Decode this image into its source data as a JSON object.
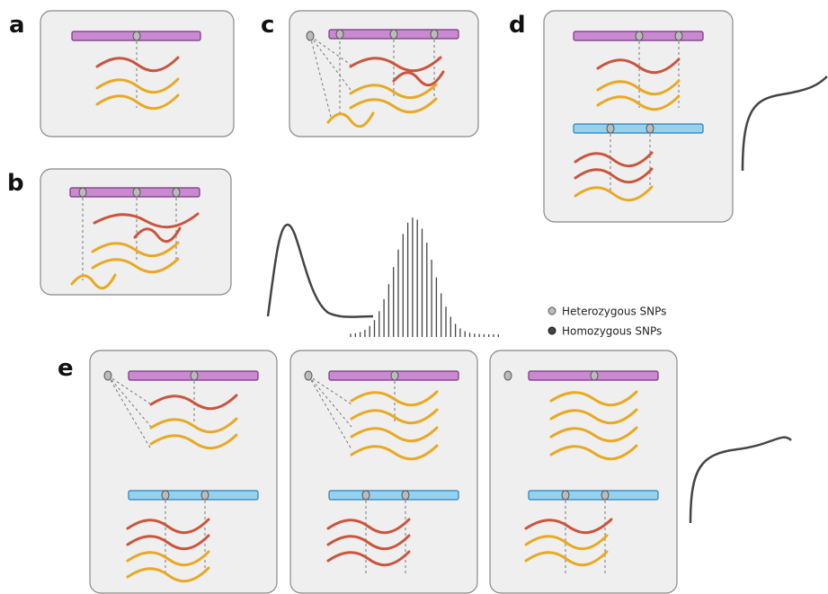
{
  "panels": [
    {
      "label": "a"
    },
    {
      "label": "b"
    },
    {
      "label": "c"
    },
    {
      "label": "d"
    },
    {
      "label": "e"
    }
  ],
  "legend": [
    {
      "label": "Heterozygous SNPs"
    },
    {
      "label": "Homozygous SNPs"
    }
  ]
}
